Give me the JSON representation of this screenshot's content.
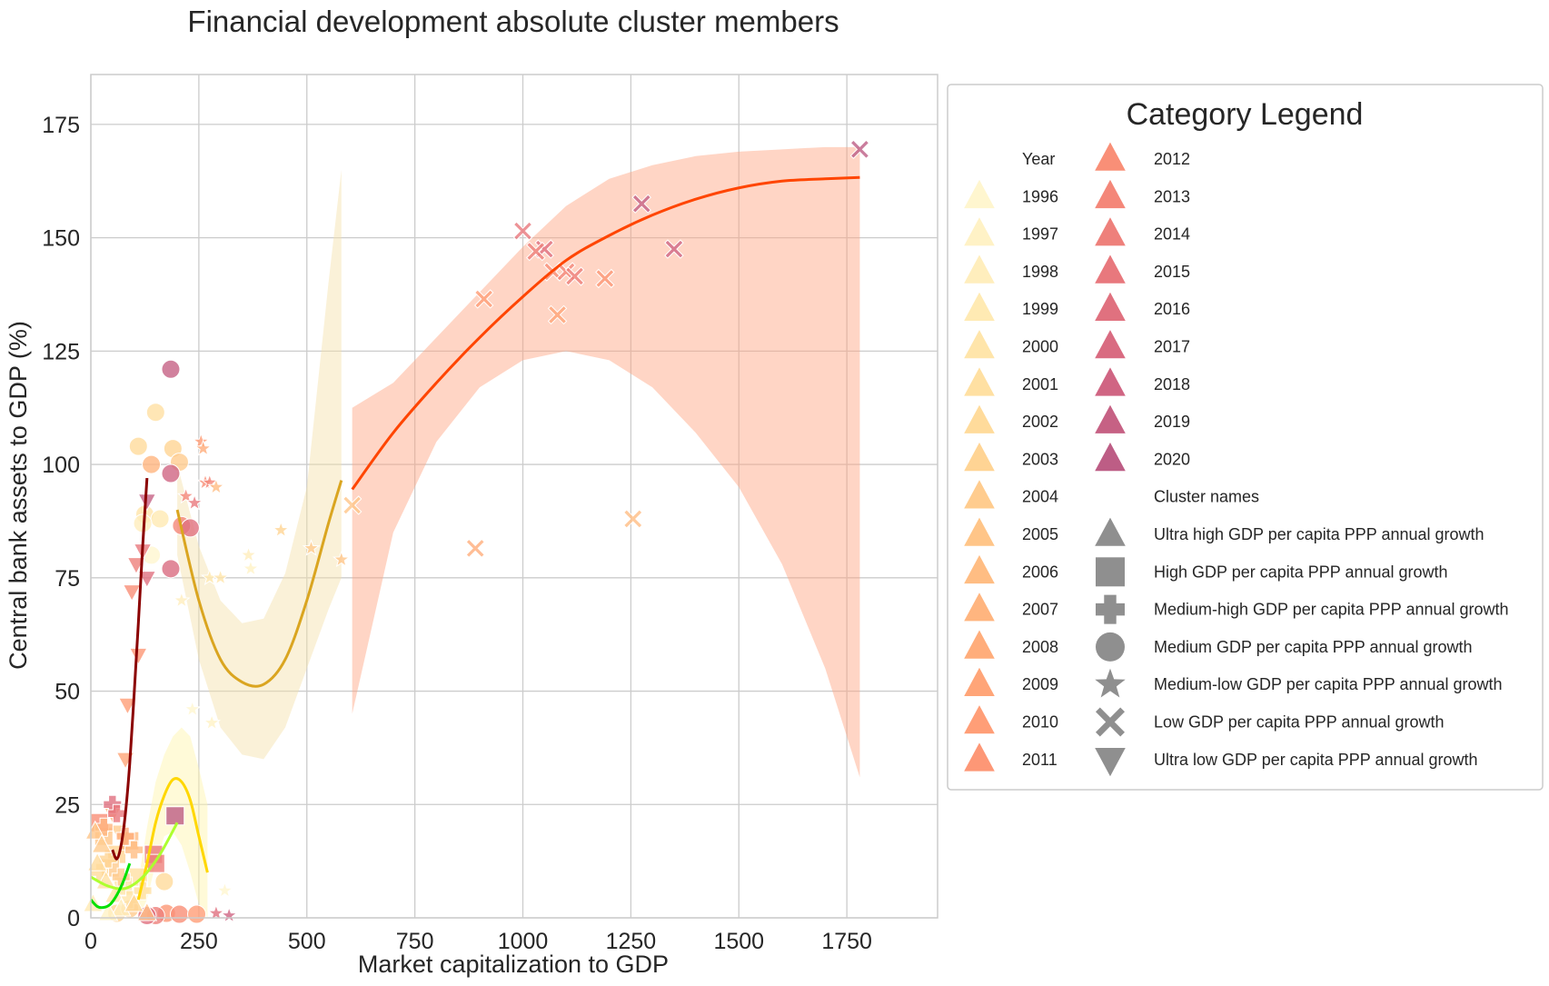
{
  "chart_data": {
    "type": "scatter",
    "title": "Financial development absolute cluster members",
    "xlabel": "Market capitalization to GDP",
    "ylabel": "Central bank assets to GDP (%)",
    "xlim": [
      0,
      1960
    ],
    "ylim": [
      0,
      186
    ],
    "xticks": [
      0,
      250,
      500,
      750,
      1000,
      1250,
      1500,
      1750
    ],
    "yticks": [
      0,
      25,
      50,
      75,
      100,
      125,
      150,
      175
    ],
    "grid": true,
    "legend": {
      "title": "Category Legend",
      "placement": "outside-right",
      "year_header": "Year",
      "years": [
        {
          "label": "1996",
          "color": "#fff6cf"
        },
        {
          "label": "1997",
          "color": "#fff2c6"
        },
        {
          "label": "1998",
          "color": "#ffeebd"
        },
        {
          "label": "1999",
          "color": "#ffeab3"
        },
        {
          "label": "2000",
          "color": "#ffe5aa"
        },
        {
          "label": "2001",
          "color": "#ffe0a2"
        },
        {
          "label": "2002",
          "color": "#ffdb9b"
        },
        {
          "label": "2003",
          "color": "#ffd494"
        },
        {
          "label": "2004",
          "color": "#ffcc8e"
        },
        {
          "label": "2005",
          "color": "#ffc588"
        },
        {
          "label": "2006",
          "color": "#ffbd83"
        },
        {
          "label": "2007",
          "color": "#ffb57f"
        },
        {
          "label": "2008",
          "color": "#ffad7b"
        },
        {
          "label": "2009",
          "color": "#ffa578"
        },
        {
          "label": "2010",
          "color": "#ff9e77"
        },
        {
          "label": "2011",
          "color": "#fd9776"
        },
        {
          "label": "2012",
          "color": "#f98f77"
        },
        {
          "label": "2013",
          "color": "#f48779"
        },
        {
          "label": "2014",
          "color": "#ee807b"
        },
        {
          "label": "2015",
          "color": "#e8787d"
        },
        {
          "label": "2016",
          "color": "#e0717f"
        },
        {
          "label": "2017",
          "color": "#d96b81"
        },
        {
          "label": "2018",
          "color": "#d06583"
        },
        {
          "label": "2019",
          "color": "#c66184"
        },
        {
          "label": "2020",
          "color": "#bd5d85"
        }
      ],
      "cluster_header": "Cluster names",
      "clusters": [
        {
          "label": "Ultra high GDP per capita PPP annual growth",
          "marker": "triangle-up"
        },
        {
          "label": "High GDP per capita PPP annual growth",
          "marker": "square"
        },
        {
          "label": "Medium-high GDP per capita PPP annual growth",
          "marker": "plus"
        },
        {
          "label": "Medium GDP per capita PPP annual growth",
          "marker": "circle"
        },
        {
          "label": "Medium-low GDP per capita PPP annual growth",
          "marker": "star"
        },
        {
          "label": "Low GDP per capita PPP annual growth",
          "marker": "x"
        },
        {
          "label": "Ultra low GDP per capita PPP annual growth",
          "marker": "triangle-down"
        }
      ],
      "cluster_marker_color": "#8f8f8f"
    },
    "fits": [
      {
        "cluster": "Low GDP per capita PPP annual growth",
        "color": "#ff4500",
        "band_color": "#ffa27f",
        "x": [
          605,
          700,
          800,
          900,
          1000,
          1100,
          1200,
          1300,
          1400,
          1500,
          1600,
          1700,
          1780
        ],
        "y": [
          94.5,
          107,
          118,
          128,
          137,
          145,
          150.5,
          155,
          158.5,
          161,
          162.5,
          163,
          163.3
        ],
        "lo": [
          45,
          85,
          105,
          117,
          123,
          125,
          123,
          117,
          107,
          95,
          78,
          55,
          31
        ],
        "hi": [
          112.5,
          118,
          128,
          138,
          148,
          157,
          163,
          166,
          168,
          169,
          169.5,
          170,
          170
        ]
      },
      {
        "cluster": "Medium-low GDP per capita PPP annual growth",
        "color": "#daa520",
        "band_color": "#f5dfa8",
        "x": [
          200,
          250,
          300,
          350,
          400,
          450,
          500,
          550,
          580
        ],
        "y": [
          90,
          70,
          57,
          52,
          51.5,
          57,
          70,
          87,
          96.5
        ],
        "lo": [
          80,
          57,
          42,
          36,
          35,
          42,
          55,
          68,
          75
        ],
        "hi": [
          100,
          82,
          70,
          65,
          66,
          76,
          95,
          140,
          165
        ]
      },
      {
        "cluster": "Ultra low GDP per capita PPP annual growth",
        "color": "#8b0000",
        "x": [
          50,
          60,
          70,
          80,
          90,
          100,
          110,
          120,
          130
        ],
        "y": [
          15,
          13,
          16,
          23,
          34,
          49,
          65,
          82,
          97
        ]
      },
      {
        "cluster": "Medium GDP per capita PPP annual growth",
        "color": "#ffd700",
        "band_color": "#fff3a8",
        "x": [
          110,
          130,
          150,
          170,
          190,
          210,
          230,
          250,
          270
        ],
        "y": [
          4,
          12,
          21,
          27,
          30.5,
          30,
          26,
          18,
          10
        ],
        "lo": [
          0,
          4,
          12,
          18,
          19,
          16,
          10,
          3,
          0
        ],
        "hi": [
          8,
          20,
          30,
          36,
          40,
          42,
          40,
          33,
          25
        ]
      },
      {
        "cluster": "High GDP per capita PPP annual growth",
        "color": "#adff2f",
        "x": [
          0,
          40,
          80,
          120,
          160,
          200
        ],
        "y": [
          9,
          7,
          6.5,
          9,
          14,
          21
        ]
      },
      {
        "cluster": "Ultra high GDP per capita PPP annual growth",
        "color": "#00e000",
        "x": [
          0,
          15,
          30,
          45,
          60,
          75,
          90
        ],
        "y": [
          4,
          2.5,
          2.3,
          3,
          5,
          8,
          12
        ]
      }
    ],
    "series": [
      {
        "name": "Low GDP per capita PPP annual growth",
        "marker": "x",
        "points": [
          [
            1780,
            169.5,
            "2020"
          ],
          [
            1000,
            151.5,
            "2015"
          ],
          [
            1050,
            147.5,
            "2016"
          ],
          [
            1030,
            147,
            "2014"
          ],
          [
            1350,
            147.5,
            "2018"
          ],
          [
            1275,
            157.5,
            "2019"
          ],
          [
            910,
            136.5,
            "2010"
          ],
          [
            1070,
            142.5,
            "2012"
          ],
          [
            1100,
            142.5,
            "2013"
          ],
          [
            1120,
            141.5,
            "2014"
          ],
          [
            1190,
            141,
            "2011"
          ],
          [
            1080,
            133,
            "2009"
          ],
          [
            605,
            91,
            "2005"
          ],
          [
            890,
            81.5,
            "2008"
          ],
          [
            1255,
            88,
            "2006"
          ]
        ]
      },
      {
        "name": "Medium-low GDP per capita PPP annual growth",
        "marker": "star",
        "points": [
          [
            255,
            105,
            "2010"
          ],
          [
            260,
            103.5,
            "2008"
          ],
          [
            265,
            96,
            "2012"
          ],
          [
            275,
            96,
            "2013"
          ],
          [
            290,
            95,
            "2006"
          ],
          [
            220,
            93,
            "2013"
          ],
          [
            240,
            91.5,
            "2015"
          ],
          [
            365,
            80,
            "1998"
          ],
          [
            370,
            77,
            "1997"
          ],
          [
            440,
            85.5,
            "2003"
          ],
          [
            510,
            81.5,
            "2004"
          ],
          [
            580,
            79,
            "2005"
          ],
          [
            275,
            75,
            "1999"
          ],
          [
            300,
            75,
            "2000"
          ],
          [
            210,
            70,
            "1998"
          ],
          [
            235,
            46,
            "1996"
          ],
          [
            280,
            43,
            "1997"
          ],
          [
            310,
            6,
            "1996"
          ],
          [
            290,
            1,
            "2016"
          ],
          [
            320,
            0.5,
            "2018"
          ]
        ]
      },
      {
        "name": "Medium GDP per capita PPP annual growth",
        "marker": "circle",
        "points": [
          [
            185,
            121,
            "2019"
          ],
          [
            150,
            111.5,
            "2001"
          ],
          [
            110,
            104,
            "2002"
          ],
          [
            190,
            103.5,
            "2003"
          ],
          [
            205,
            100.5,
            "2004"
          ],
          [
            140,
            100,
            "2007"
          ],
          [
            185,
            98,
            "2018"
          ],
          [
            125,
            89,
            "2000"
          ],
          [
            160,
            88,
            "1999"
          ],
          [
            120,
            87,
            "1998"
          ],
          [
            210,
            86.5,
            "2013"
          ],
          [
            230,
            86,
            "2016"
          ],
          [
            185,
            77,
            "2017"
          ],
          [
            140,
            80,
            "1996"
          ],
          [
            175,
            1,
            "2011"
          ],
          [
            205,
            0.8,
            "2012"
          ],
          [
            245,
            0.8,
            "2010"
          ],
          [
            150,
            0.5,
            "2014"
          ],
          [
            130,
            0.5,
            "2016"
          ],
          [
            60,
            1,
            "2003"
          ],
          [
            90,
            2,
            "2004"
          ],
          [
            170,
            8,
            "2002"
          ]
        ]
      },
      {
        "name": "Ultra low GDP per capita PPP annual growth",
        "marker": "triangle-down",
        "points": [
          [
            130,
            92,
            "2019"
          ],
          [
            120,
            81,
            "2015"
          ],
          [
            130,
            75,
            "2016"
          ],
          [
            105,
            78,
            "2014"
          ],
          [
            95,
            72,
            "2012"
          ],
          [
            110,
            58,
            "2011"
          ],
          [
            85,
            47,
            "2010"
          ],
          [
            80,
            35,
            "2009"
          ],
          [
            50,
            23,
            "2007"
          ],
          [
            65,
            19,
            "2004"
          ]
        ]
      },
      {
        "name": "High GDP per capita PPP annual growth",
        "marker": "square",
        "points": [
          [
            195,
            22.5,
            "2020"
          ],
          [
            145,
            14,
            "2015"
          ],
          [
            150,
            12,
            "2014"
          ],
          [
            30,
            18,
            "2005"
          ],
          [
            20,
            21,
            "2012"
          ],
          [
            60,
            14,
            "2003"
          ],
          [
            90,
            17,
            "2006"
          ],
          [
            110,
            9,
            "2001"
          ],
          [
            75,
            7,
            "2000"
          ],
          [
            45,
            11,
            "2004"
          ]
        ]
      },
      {
        "name": "Medium-high GDP per capita PPP annual growth",
        "marker": "plus",
        "points": [
          [
            50,
            25,
            "2016"
          ],
          [
            60,
            23,
            "2015"
          ],
          [
            30,
            20,
            "2007"
          ],
          [
            80,
            18,
            "2008"
          ],
          [
            100,
            15,
            "2006"
          ],
          [
            40,
            13,
            "2003"
          ],
          [
            20,
            10,
            "2002"
          ],
          [
            70,
            9,
            "2004"
          ],
          [
            120,
            6,
            "2001"
          ],
          [
            90,
            4,
            "2000"
          ]
        ]
      },
      {
        "name": "Ultra high GDP per capita PPP annual growth",
        "marker": "triangle-up",
        "points": [
          [
            10,
            19,
            "2005"
          ],
          [
            25,
            16,
            "2004"
          ],
          [
            15,
            12,
            "2002"
          ],
          [
            35,
            8,
            "2001"
          ],
          [
            55,
            5,
            "2000"
          ],
          [
            5,
            3,
            "1999"
          ],
          [
            70,
            2,
            "1998"
          ],
          [
            40,
            1,
            "1997"
          ],
          [
            100,
            3,
            "2003"
          ],
          [
            130,
            1,
            "2006"
          ]
        ]
      }
    ]
  }
}
